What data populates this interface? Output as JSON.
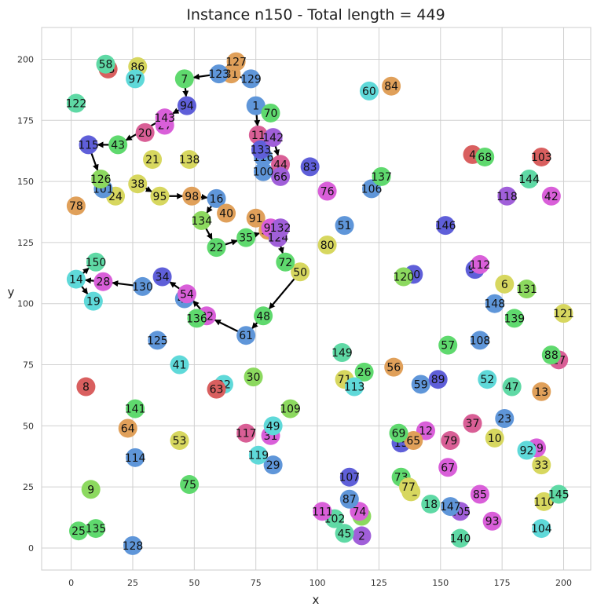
{
  "chart_data": {
    "type": "scatter",
    "title": "Instance n150 - Total length = 449",
    "xlabel": "x",
    "ylabel": "y",
    "xlim": [
      -12,
      211
    ],
    "ylim": [
      -9,
      213
    ],
    "xticks": [
      "0",
      "25",
      "50",
      "75",
      "100",
      "125",
      "150",
      "175",
      "200"
    ],
    "yticks": [
      "0",
      "25",
      "50",
      "75",
      "100",
      "125",
      "150",
      "175",
      "200"
    ],
    "grid": true,
    "palette": [
      "#d95f5f",
      "#e0a05a",
      "#d7d75f",
      "#8cd95f",
      "#5fd96e",
      "#5fd9a5",
      "#5fd9d9",
      "#5f96d9",
      "#5f5fd9",
      "#a05fd9",
      "#d95fd9",
      "#d95f96"
    ],
    "points": [
      {
        "id": "1",
        "x": 75,
        "y": 181,
        "c": 7
      },
      {
        "id": "2",
        "x": 118,
        "y": 5,
        "c": 9
      },
      {
        "id": "3",
        "x": 118,
        "y": 13,
        "c": 3
      },
      {
        "id": "4",
        "x": 163,
        "y": 161,
        "c": 0
      },
      {
        "id": "5",
        "x": 134,
        "y": 43,
        "c": 8
      },
      {
        "id": "6",
        "x": 176,
        "y": 108,
        "c": 2
      },
      {
        "id": "7",
        "x": 46,
        "y": 192,
        "c": 4
      },
      {
        "id": "8",
        "x": 6,
        "y": 66,
        "c": 0
      },
      {
        "id": "9",
        "x": 8,
        "y": 24,
        "c": 3
      },
      {
        "id": "10",
        "x": 172,
        "y": 45,
        "c": 2
      },
      {
        "id": "11",
        "x": 76,
        "y": 169,
        "c": 11
      },
      {
        "id": "12",
        "x": 144,
        "y": 48,
        "c": 10
      },
      {
        "id": "13",
        "x": 191,
        "y": 64,
        "c": 1
      },
      {
        "id": "14",
        "x": 2,
        "y": 110,
        "c": 6
      },
      {
        "id": "15",
        "x": 134,
        "y": 43,
        "c": 8
      },
      {
        "id": "16",
        "x": 59,
        "y": 143,
        "c": 7
      },
      {
        "id": "17",
        "x": 198,
        "y": 77,
        "c": 11
      },
      {
        "id": "18",
        "x": 146,
        "y": 18,
        "c": 5
      },
      {
        "id": "19",
        "x": 9,
        "y": 101,
        "c": 6
      },
      {
        "id": "20",
        "x": 30,
        "y": 170,
        "c": 11
      },
      {
        "id": "21",
        "x": 33,
        "y": 159,
        "c": 2
      },
      {
        "id": "22",
        "x": 59,
        "y": 123,
        "c": 4
      },
      {
        "id": "23",
        "x": 176,
        "y": 53,
        "c": 7
      },
      {
        "id": "24",
        "x": 18,
        "y": 144,
        "c": 2
      },
      {
        "id": "25",
        "x": 3,
        "y": 7,
        "c": 4
      },
      {
        "id": "26",
        "x": 119,
        "y": 72,
        "c": 4
      },
      {
        "id": "27",
        "x": 38,
        "y": 173,
        "c": 10
      },
      {
        "id": "28",
        "x": 13,
        "y": 109,
        "c": 10
      },
      {
        "id": "29",
        "x": 82,
        "y": 34,
        "c": 7
      },
      {
        "id": "30",
        "x": 74,
        "y": 70,
        "c": 3
      },
      {
        "id": "31",
        "x": 81,
        "y": 46,
        "c": 10
      },
      {
        "id": "32",
        "x": 62,
        "y": 67,
        "c": 6
      },
      {
        "id": "33",
        "x": 191,
        "y": 34,
        "c": 2
      },
      {
        "id": "34",
        "x": 37,
        "y": 111,
        "c": 8
      },
      {
        "id": "35",
        "x": 71,
        "y": 127,
        "c": 4
      },
      {
        "id": "36",
        "x": 80,
        "y": 130,
        "c": 1
      },
      {
        "id": "37",
        "x": 163,
        "y": 51,
        "c": 11
      },
      {
        "id": "38",
        "x": 27,
        "y": 149,
        "c": 2
      },
      {
        "id": "39",
        "x": 189,
        "y": 41,
        "c": 10
      },
      {
        "id": "40",
        "x": 63,
        "y": 137,
        "c": 1
      },
      {
        "id": "41",
        "x": 44,
        "y": 75,
        "c": 6
      },
      {
        "id": "42",
        "x": 195,
        "y": 144,
        "c": 10
      },
      {
        "id": "43",
        "x": 19,
        "y": 165,
        "c": 4
      },
      {
        "id": "44",
        "x": 85,
        "y": 157,
        "c": 11
      },
      {
        "id": "45",
        "x": 111,
        "y": 6,
        "c": 5
      },
      {
        "id": "46",
        "x": 46,
        "y": 102,
        "c": 7
      },
      {
        "id": "47",
        "x": 179,
        "y": 66,
        "c": 5
      },
      {
        "id": "48",
        "x": 78,
        "y": 95,
        "c": 4
      },
      {
        "id": "49",
        "x": 82,
        "y": 50,
        "c": 6
      },
      {
        "id": "50",
        "x": 93,
        "y": 113,
        "c": 2
      },
      {
        "id": "51",
        "x": 111,
        "y": 132,
        "c": 7
      },
      {
        "id": "52",
        "x": 169,
        "y": 69,
        "c": 6
      },
      {
        "id": "53",
        "x": 44,
        "y": 44,
        "c": 2
      },
      {
        "id": "54",
        "x": 47,
        "y": 104,
        "c": 10
      },
      {
        "id": "55",
        "x": 15,
        "y": 196,
        "c": 0
      },
      {
        "id": "56",
        "x": 131,
        "y": 74,
        "c": 1
      },
      {
        "id": "57",
        "x": 153,
        "y": 83,
        "c": 4
      },
      {
        "id": "58",
        "x": 14,
        "y": 198,
        "c": 5
      },
      {
        "id": "59",
        "x": 142,
        "y": 67,
        "c": 7
      },
      {
        "id": "60",
        "x": 121,
        "y": 187,
        "c": 6
      },
      {
        "id": "61",
        "x": 71,
        "y": 87,
        "c": 7
      },
      {
        "id": "62",
        "x": 138,
        "y": 23,
        "c": 2
      },
      {
        "id": "63",
        "x": 59,
        "y": 65,
        "c": 0
      },
      {
        "id": "64",
        "x": 23,
        "y": 49,
        "c": 1
      },
      {
        "id": "65",
        "x": 139,
        "y": 44,
        "c": 1
      },
      {
        "id": "66",
        "x": 85,
        "y": 152,
        "c": 9
      },
      {
        "id": "67",
        "x": 153,
        "y": 33,
        "c": 10
      },
      {
        "id": "68",
        "x": 168,
        "y": 160,
        "c": 4
      },
      {
        "id": "69",
        "x": 133,
        "y": 47,
        "c": 4
      },
      {
        "id": "70",
        "x": 81,
        "y": 178,
        "c": 4
      },
      {
        "id": "71",
        "x": 111,
        "y": 69,
        "c": 2
      },
      {
        "id": "72",
        "x": 87,
        "y": 117,
        "c": 4
      },
      {
        "id": "73",
        "x": 134,
        "y": 29,
        "c": 4
      },
      {
        "id": "74",
        "x": 117,
        "y": 15,
        "c": 10
      },
      {
        "id": "75",
        "x": 48,
        "y": 26,
        "c": 4
      },
      {
        "id": "76",
        "x": 104,
        "y": 146,
        "c": 10
      },
      {
        "id": "77",
        "x": 137,
        "y": 25,
        "c": 2
      },
      {
        "id": "78",
        "x": 2,
        "y": 140,
        "c": 1
      },
      {
        "id": "79",
        "x": 154,
        "y": 44,
        "c": 11
      },
      {
        "id": "80",
        "x": 104,
        "y": 124,
        "c": 2
      },
      {
        "id": "81",
        "x": 65,
        "y": 194,
        "c": 1
      },
      {
        "id": "82",
        "x": 55,
        "y": 95,
        "c": 10
      },
      {
        "id": "83",
        "x": 97,
        "y": 156,
        "c": 8
      },
      {
        "id": "84",
        "x": 130,
        "y": 189,
        "c": 1
      },
      {
        "id": "85",
        "x": 166,
        "y": 22,
        "c": 10
      },
      {
        "id": "86",
        "x": 27,
        "y": 197,
        "c": 2
      },
      {
        "id": "87",
        "x": 113,
        "y": 20,
        "c": 7
      },
      {
        "id": "88",
        "x": 195,
        "y": 79,
        "c": 4
      },
      {
        "id": "89",
        "x": 149,
        "y": 69,
        "c": 8
      },
      {
        "id": "90",
        "x": 139,
        "y": 112,
        "c": 8
      },
      {
        "id": "91",
        "x": 75,
        "y": 135,
        "c": 1
      },
      {
        "id": "92",
        "x": 185,
        "y": 40,
        "c": 6
      },
      {
        "id": "93",
        "x": 171,
        "y": 11,
        "c": 10
      },
      {
        "id": "94",
        "x": 47,
        "y": 181,
        "c": 8
      },
      {
        "id": "95",
        "x": 36,
        "y": 144,
        "c": 2
      },
      {
        "id": "96",
        "x": 81,
        "y": 131,
        "c": 10
      },
      {
        "id": "97",
        "x": 26,
        "y": 192,
        "c": 6
      },
      {
        "id": "98",
        "x": 49,
        "y": 144,
        "c": 1
      },
      {
        "id": "99",
        "x": 164,
        "y": 114,
        "c": 8
      },
      {
        "id": "100",
        "x": 78,
        "y": 154,
        "c": 7
      },
      {
        "id": "101",
        "x": 13,
        "y": 147,
        "c": 7
      },
      {
        "id": "102",
        "x": 107,
        "y": 12,
        "c": 5
      },
      {
        "id": "103",
        "x": 191,
        "y": 160,
        "c": 0
      },
      {
        "id": "104",
        "x": 191,
        "y": 8,
        "c": 6
      },
      {
        "id": "105",
        "x": 158,
        "y": 15,
        "c": 9
      },
      {
        "id": "106",
        "x": 122,
        "y": 147,
        "c": 7
      },
      {
        "id": "107",
        "x": 113,
        "y": 29,
        "c": 8
      },
      {
        "id": "108",
        "x": 166,
        "y": 85,
        "c": 7
      },
      {
        "id": "109",
        "x": 89,
        "y": 57,
        "c": 3
      },
      {
        "id": "110",
        "x": 192,
        "y": 19,
        "c": 2
      },
      {
        "id": "111",
        "x": 102,
        "y": 15,
        "c": 10
      },
      {
        "id": "112",
        "x": 166,
        "y": 116,
        "c": 10
      },
      {
        "id": "113",
        "x": 115,
        "y": 66,
        "c": 6
      },
      {
        "id": "114",
        "x": 26,
        "y": 37,
        "c": 7
      },
      {
        "id": "115",
        "x": 7,
        "y": 165,
        "c": 8
      },
      {
        "id": "116",
        "x": 78,
        "y": 160,
        "c": 7
      },
      {
        "id": "117",
        "x": 71,
        "y": 47,
        "c": 11
      },
      {
        "id": "118",
        "x": 177,
        "y": 144,
        "c": 9
      },
      {
        "id": "119",
        "x": 76,
        "y": 38,
        "c": 6
      },
      {
        "id": "120",
        "x": 135,
        "y": 111,
        "c": 3
      },
      {
        "id": "121",
        "x": 200,
        "y": 96,
        "c": 2
      },
      {
        "id": "122",
        "x": 2,
        "y": 182,
        "c": 5
      },
      {
        "id": "123",
        "x": 60,
        "y": 194,
        "c": 7
      },
      {
        "id": "124",
        "x": 84,
        "y": 127,
        "c": 9
      },
      {
        "id": "125",
        "x": 35,
        "y": 85,
        "c": 7
      },
      {
        "id": "126",
        "x": 12,
        "y": 151,
        "c": 3
      },
      {
        "id": "127",
        "x": 67,
        "y": 199,
        "c": 1
      },
      {
        "id": "128",
        "x": 25,
        "y": 1,
        "c": 7
      },
      {
        "id": "129",
        "x": 73,
        "y": 192,
        "c": 7
      },
      {
        "id": "130",
        "x": 29,
        "y": 107,
        "c": 7
      },
      {
        "id": "131",
        "x": 185,
        "y": 106,
        "c": 3
      },
      {
        "id": "132",
        "x": 85,
        "y": 131,
        "c": 9
      },
      {
        "id": "133",
        "x": 77,
        "y": 163,
        "c": 8
      },
      {
        "id": "134",
        "x": 53,
        "y": 134,
        "c": 3
      },
      {
        "id": "135",
        "x": 10,
        "y": 8,
        "c": 4
      },
      {
        "id": "136",
        "x": 51,
        "y": 94,
        "c": 4
      },
      {
        "id": "137",
        "x": 126,
        "y": 152,
        "c": 4
      },
      {
        "id": "138",
        "x": 48,
        "y": 159,
        "c": 2
      },
      {
        "id": "139",
        "x": 180,
        "y": 94,
        "c": 4
      },
      {
        "id": "140",
        "x": 158,
        "y": 4,
        "c": 5
      },
      {
        "id": "141",
        "x": 26,
        "y": 57,
        "c": 4
      },
      {
        "id": "142",
        "x": 82,
        "y": 168,
        "c": 9
      },
      {
        "id": "143",
        "x": 38,
        "y": 176,
        "c": 10
      },
      {
        "id": "144",
        "x": 186,
        "y": 151,
        "c": 5
      },
      {
        "id": "145",
        "x": 198,
        "y": 22,
        "c": 5
      },
      {
        "id": "146",
        "x": 152,
        "y": 132,
        "c": 8
      },
      {
        "id": "147",
        "x": 154,
        "y": 17,
        "c": 7
      },
      {
        "id": "148",
        "x": 172,
        "y": 100,
        "c": 7
      },
      {
        "id": "149",
        "x": 110,
        "y": 80,
        "c": 5
      },
      {
        "id": "150",
        "x": 10,
        "y": 117,
        "c": 5
      }
    ],
    "tour_arrows": [
      [
        "1",
        "11"
      ],
      [
        "11",
        "142"
      ],
      [
        "142",
        "44"
      ],
      [
        "133",
        "100"
      ],
      [
        "129",
        "123"
      ],
      [
        "123",
        "7"
      ],
      [
        "7",
        "94"
      ],
      [
        "94",
        "143"
      ],
      [
        "143",
        "43"
      ],
      [
        "43",
        "115"
      ],
      [
        "115",
        "126"
      ],
      [
        "126",
        "24"
      ],
      [
        "38",
        "95"
      ],
      [
        "95",
        "98"
      ],
      [
        "98",
        "16"
      ],
      [
        "16",
        "134"
      ],
      [
        "134",
        "22"
      ],
      [
        "22",
        "35"
      ],
      [
        "35",
        "36"
      ],
      [
        "36",
        "124"
      ],
      [
        "124",
        "72"
      ],
      [
        "72",
        "50"
      ],
      [
        "50",
        "48"
      ],
      [
        "48",
        "61"
      ],
      [
        "61",
        "82"
      ],
      [
        "82",
        "54"
      ],
      [
        "54",
        "34"
      ],
      [
        "130",
        "28"
      ],
      [
        "28",
        "14"
      ],
      [
        "14",
        "19"
      ],
      [
        "14",
        "150"
      ]
    ]
  }
}
